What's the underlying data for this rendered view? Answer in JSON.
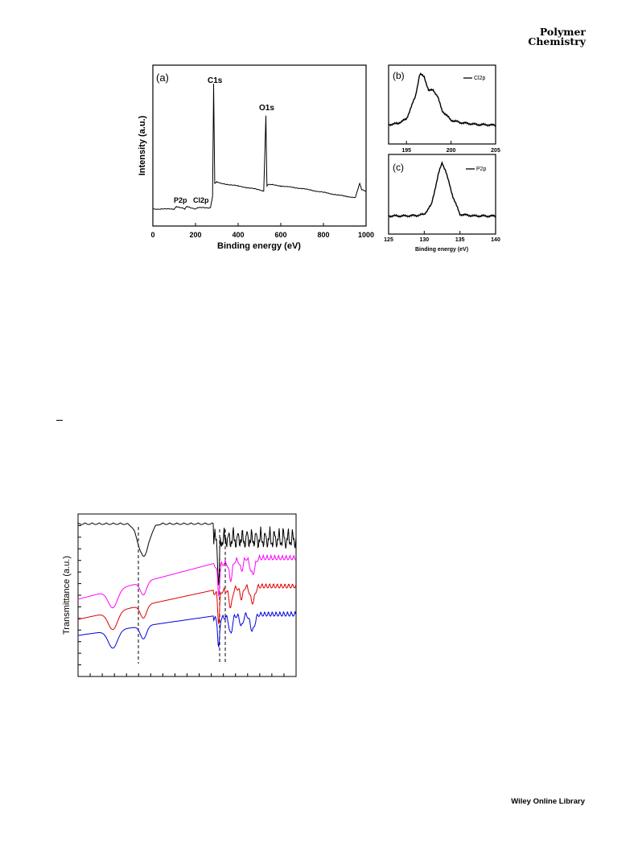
{
  "header": {
    "journal_line1": "Polymer",
    "journal_line2": "Chemistry"
  },
  "footer": {
    "text": "Wiley Online Library"
  },
  "figure1": {
    "panel_a": {
      "label": "(a)",
      "xlabel": "Binding energy (eV)",
      "ylabel": "Intensity (a.u.)",
      "xticks": [
        "0",
        "200",
        "400",
        "600",
        "800",
        "1000"
      ],
      "annotations": [
        "C1s",
        "O1s",
        "P2p",
        "Cl2p"
      ]
    },
    "panel_b": {
      "label": "(b)",
      "legend": "Cl2p",
      "xticks": [
        "195",
        "200",
        "205"
      ]
    },
    "panel_c": {
      "label": "(c)",
      "legend": "P2p",
      "xlabel": "Binding energy (eV)",
      "xticks": [
        "125",
        "130",
        "135",
        "140"
      ]
    }
  },
  "figure2": {
    "ylabel": "Transmittance (a.u.)",
    "series_colors": [
      "#000000",
      "#ff00ff",
      "#e00000",
      "#0000dd"
    ]
  },
  "chart_data": [
    {
      "type": "line",
      "title": "",
      "xlabel": "Binding energy (eV)",
      "ylabel": "Intensity (a.u.)",
      "xlim": [
        0,
        1000
      ],
      "series": [
        {
          "x": [
            0,
            100,
            110,
            150,
            160,
            200,
            210,
            270,
            280,
            285,
            290,
            300,
            320,
            400,
            500,
            520,
            530,
            535,
            540,
            560,
            600,
            700,
            800,
            900,
            950,
            970,
            980,
            1000
          ],
          "y": [
            2,
            2,
            4,
            2,
            4,
            2,
            3,
            3,
            12,
            100,
            22,
            23,
            22,
            20,
            17,
            16,
            75,
            20,
            21,
            21,
            20,
            18,
            15,
            12,
            11,
            22,
            17,
            16
          ]
        }
      ],
      "annotations": [
        "C1s",
        "O1s",
        "P2p",
        "Cl2p"
      ]
    },
    {
      "type": "line",
      "title": "",
      "xlim": [
        193,
        205
      ],
      "series": [
        {
          "name": "Cl2p",
          "x": [
            193,
            194,
            195,
            196,
            196.5,
            197,
            197.5,
            198,
            198.5,
            199,
            200,
            201,
            202,
            203,
            204,
            205
          ],
          "y": [
            10,
            12,
            20,
            60,
            100,
            95,
            70,
            72,
            60,
            35,
            18,
            14,
            12,
            10,
            10,
            9
          ]
        }
      ]
    },
    {
      "type": "line",
      "title": "",
      "xlabel": "Binding energy (eV)",
      "xlim": [
        125,
        140
      ],
      "series": [
        {
          "name": "P2p",
          "x": [
            125,
            127,
            129,
            130,
            131,
            132,
            132.5,
            133,
            134,
            135,
            137,
            140
          ],
          "y": [
            5,
            5,
            6,
            8,
            25,
            80,
            100,
            85,
            40,
            8,
            5,
            5
          ]
        }
      ]
    },
    {
      "type": "line",
      "title": "",
      "ylabel": "Transmittance (a.u.)",
      "series": [
        {
          "color": "#000000"
        },
        {
          "color": "#ff00ff"
        },
        {
          "color": "#e00000"
        },
        {
          "color": "#0000dd"
        }
      ]
    }
  ]
}
